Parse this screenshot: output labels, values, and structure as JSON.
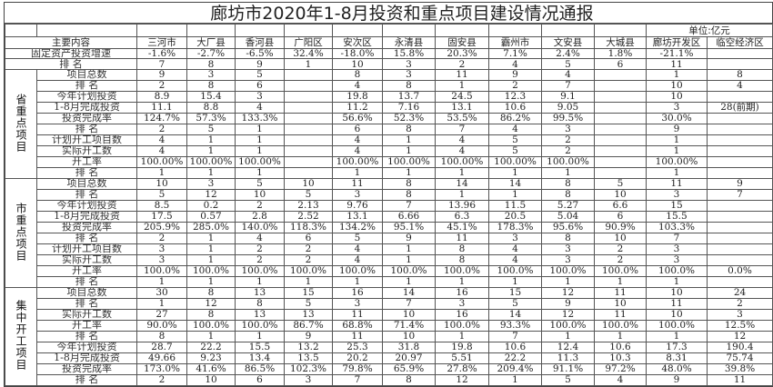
{
  "title": "廊坊市2020年1-8月投资和重点项目建设情况通报",
  "unit": "单位:亿元",
  "header_label": "主要内容",
  "columns": [
    "三河市",
    "大厂县",
    "香河县",
    "广阳区",
    "安次区",
    "永清县",
    "固安县",
    "霸州市",
    "文安县",
    "大城县",
    "廊坊开发区",
    "临空经济区"
  ],
  "top_rows": [
    {
      "label": "固定资产投资增速",
      "values": [
        "-1.6%",
        "-2.7%",
        "-6.5%",
        "32.4%",
        "-18.0%",
        "15.8%",
        "20.3%",
        "7.1%",
        "2.4%",
        "1.8%",
        "-21.1%",
        ""
      ]
    },
    {
      "label": "排 名",
      "values": [
        "7",
        "8",
        "9",
        "1",
        "10",
        "3",
        "2",
        "4",
        "5",
        "6",
        "11",
        ""
      ]
    }
  ],
  "groups": [
    {
      "label": "省重点项目",
      "rows": [
        {
          "label": "项目总数",
          "values": [
            "9",
            "3",
            "5",
            "",
            "8",
            "3",
            "11",
            "9",
            "4",
            "",
            "1",
            "8"
          ]
        },
        {
          "label": "排 名",
          "values": [
            "2",
            "8",
            "6",
            "",
            "4",
            "8",
            "1",
            "2",
            "7",
            "",
            "10",
            "4"
          ]
        },
        {
          "label": "今年计划投资",
          "values": [
            "8.9",
            "15.4",
            "3",
            "",
            "19.8",
            "13.7",
            "24.5",
            "12.3",
            "9.1",
            "",
            "10",
            ""
          ]
        },
        {
          "label": "1-8月完成投资",
          "values": [
            "11.1",
            "8.8",
            "4",
            "",
            "11.2",
            "7.16",
            "13.1",
            "10.6",
            "9.05",
            "",
            "3",
            "28(前期)"
          ]
        },
        {
          "label": "投资完成率",
          "values": [
            "124.7%",
            "57.3%",
            "133.3%",
            "",
            "56.6%",
            "52.3%",
            "53.5%",
            "86.2%",
            "99.5%",
            "",
            "30.0%",
            ""
          ]
        },
        {
          "label": "排 名",
          "values": [
            "2",
            "5",
            "1",
            "",
            "6",
            "8",
            "7",
            "4",
            "3",
            "",
            "9",
            ""
          ]
        },
        {
          "label": "计划开工项目数",
          "values": [
            "4",
            "1",
            "1",
            "",
            "4",
            "1",
            "4",
            "5",
            "2",
            "",
            "1",
            ""
          ]
        },
        {
          "label": "实际开工数",
          "values": [
            "4",
            "1",
            "1",
            "",
            "4",
            "1",
            "4",
            "5",
            "2",
            "",
            "1",
            ""
          ]
        },
        {
          "label": "开工率",
          "values": [
            "100.00%",
            "100.00%",
            "100.00%",
            "",
            "100.00%",
            "100.00%",
            "100.00%",
            "100.00%",
            "100.00%",
            "",
            "100.00%",
            ""
          ]
        },
        {
          "label": "排 名",
          "values": [
            "1",
            "1",
            "1",
            "",
            "1",
            "1",
            "1",
            "1",
            "1",
            "",
            "1",
            ""
          ]
        }
      ]
    },
    {
      "label": "市重点项目",
      "rows": [
        {
          "label": "项目总数",
          "values": [
            "10",
            "3",
            "5",
            "10",
            "11",
            "8",
            "14",
            "14",
            "8",
            "5",
            "11",
            "9"
          ]
        },
        {
          "label": "排 名",
          "values": [
            "5",
            "12",
            "10",
            "5",
            "3",
            "8",
            "1",
            "1",
            "8",
            "10",
            "3",
            "7"
          ]
        },
        {
          "label": "今年计划投资",
          "values": [
            "8.5",
            "0.2",
            "2",
            "2.13",
            "9.76",
            "7",
            "13.96",
            "11.5",
            "5.27",
            "6.6",
            "15",
            ""
          ]
        },
        {
          "label": "1-8月完成投资",
          "values": [
            "17.5",
            "0.57",
            "2.8",
            "2.52",
            "13.1",
            "6.66",
            "6.3",
            "20.5",
            "5.04",
            "6",
            "15.5",
            ""
          ]
        },
        {
          "label": "投资完成率",
          "values": [
            "205.9%",
            "285.0%",
            "140.0%",
            "118.3%",
            "134.2%",
            "95.1%",
            "45.1%",
            "178.3%",
            "95.6%",
            "90.9%",
            "103.3%",
            ""
          ]
        },
        {
          "label": "排 名",
          "values": [
            "2",
            "1",
            "4",
            "6",
            "5",
            "9",
            "11",
            "3",
            "8",
            "10",
            "7",
            ""
          ]
        },
        {
          "label": "计划开工项目数",
          "values": [
            "3",
            "1",
            "2",
            "2",
            "4",
            "1",
            "8",
            "4",
            "3",
            "2",
            "3",
            ""
          ]
        },
        {
          "label": "实际开工数",
          "values": [
            "3",
            "1",
            "2",
            "2",
            "4",
            "1",
            "8",
            "4",
            "3",
            "2",
            "3",
            ""
          ]
        },
        {
          "label": "开工率",
          "values": [
            "100.0%",
            "100.0%",
            "100.0%",
            "100.0%",
            "100.0%",
            "100.0%",
            "100.0%",
            "100.0%",
            "100.0%",
            "100.0%",
            "100.0%",
            "0.0%"
          ]
        },
        {
          "label": "排 名",
          "values": [
            "1",
            "1",
            "1",
            "1",
            "1",
            "1",
            "1",
            "1",
            "1",
            "1",
            "1",
            ""
          ]
        }
      ]
    },
    {
      "label": "集中开工项目",
      "rows": [
        {
          "label": "项目总数",
          "values": [
            "30",
            "8",
            "13",
            "15",
            "16",
            "14",
            "16",
            "15",
            "12",
            "11",
            "10",
            "24"
          ]
        },
        {
          "label": "排 名",
          "values": [
            "1",
            "12",
            "8",
            "5",
            "3",
            "7",
            "3",
            "5",
            "9",
            "10",
            "11",
            "2"
          ]
        },
        {
          "label": "实际开工数",
          "values": [
            "27",
            "8",
            "13",
            "13",
            "11",
            "10",
            "16",
            "14",
            "12",
            "11",
            "10",
            "3"
          ]
        },
        {
          "label": "开工率",
          "values": [
            "90.0%",
            "100.0%",
            "100.0%",
            "86.7%",
            "68.8%",
            "71.4%",
            "100.0%",
            "93.3%",
            "100.0%",
            "100.0%",
            "100.0%",
            "12.5%"
          ]
        },
        {
          "label": "排 名",
          "values": [
            "8",
            "1",
            "1",
            "9",
            "11",
            "10",
            "1",
            "7",
            "1",
            "1",
            "1",
            "12"
          ]
        },
        {
          "label": "今年计划投资",
          "values": [
            "28.7",
            "22.2",
            "15.5",
            "13.2",
            "25.3",
            "31.8",
            "19.8",
            "10.6",
            "12.4",
            "10.6",
            "17.3",
            "190.4"
          ]
        },
        {
          "label": "1-8月完成投资",
          "values": [
            "49.66",
            "9.23",
            "13.4",
            "13.5",
            "20.2",
            "20.97",
            "5.51",
            "22.2",
            "11.3",
            "10.3",
            "8.31",
            "75.74"
          ]
        },
        {
          "label": "投资完成率",
          "values": [
            "173.0%",
            "41.6%",
            "86.5%",
            "102.3%",
            "79.8%",
            "65.9%",
            "27.8%",
            "209.4%",
            "91.1%",
            "97.2%",
            "48.0%",
            "39.8%"
          ]
        },
        {
          "label": "排 名",
          "values": [
            "2",
            "10",
            "6",
            "3",
            "7",
            "8",
            "12",
            "1",
            "5",
            "4",
            "9",
            "11"
          ]
        }
      ]
    }
  ]
}
